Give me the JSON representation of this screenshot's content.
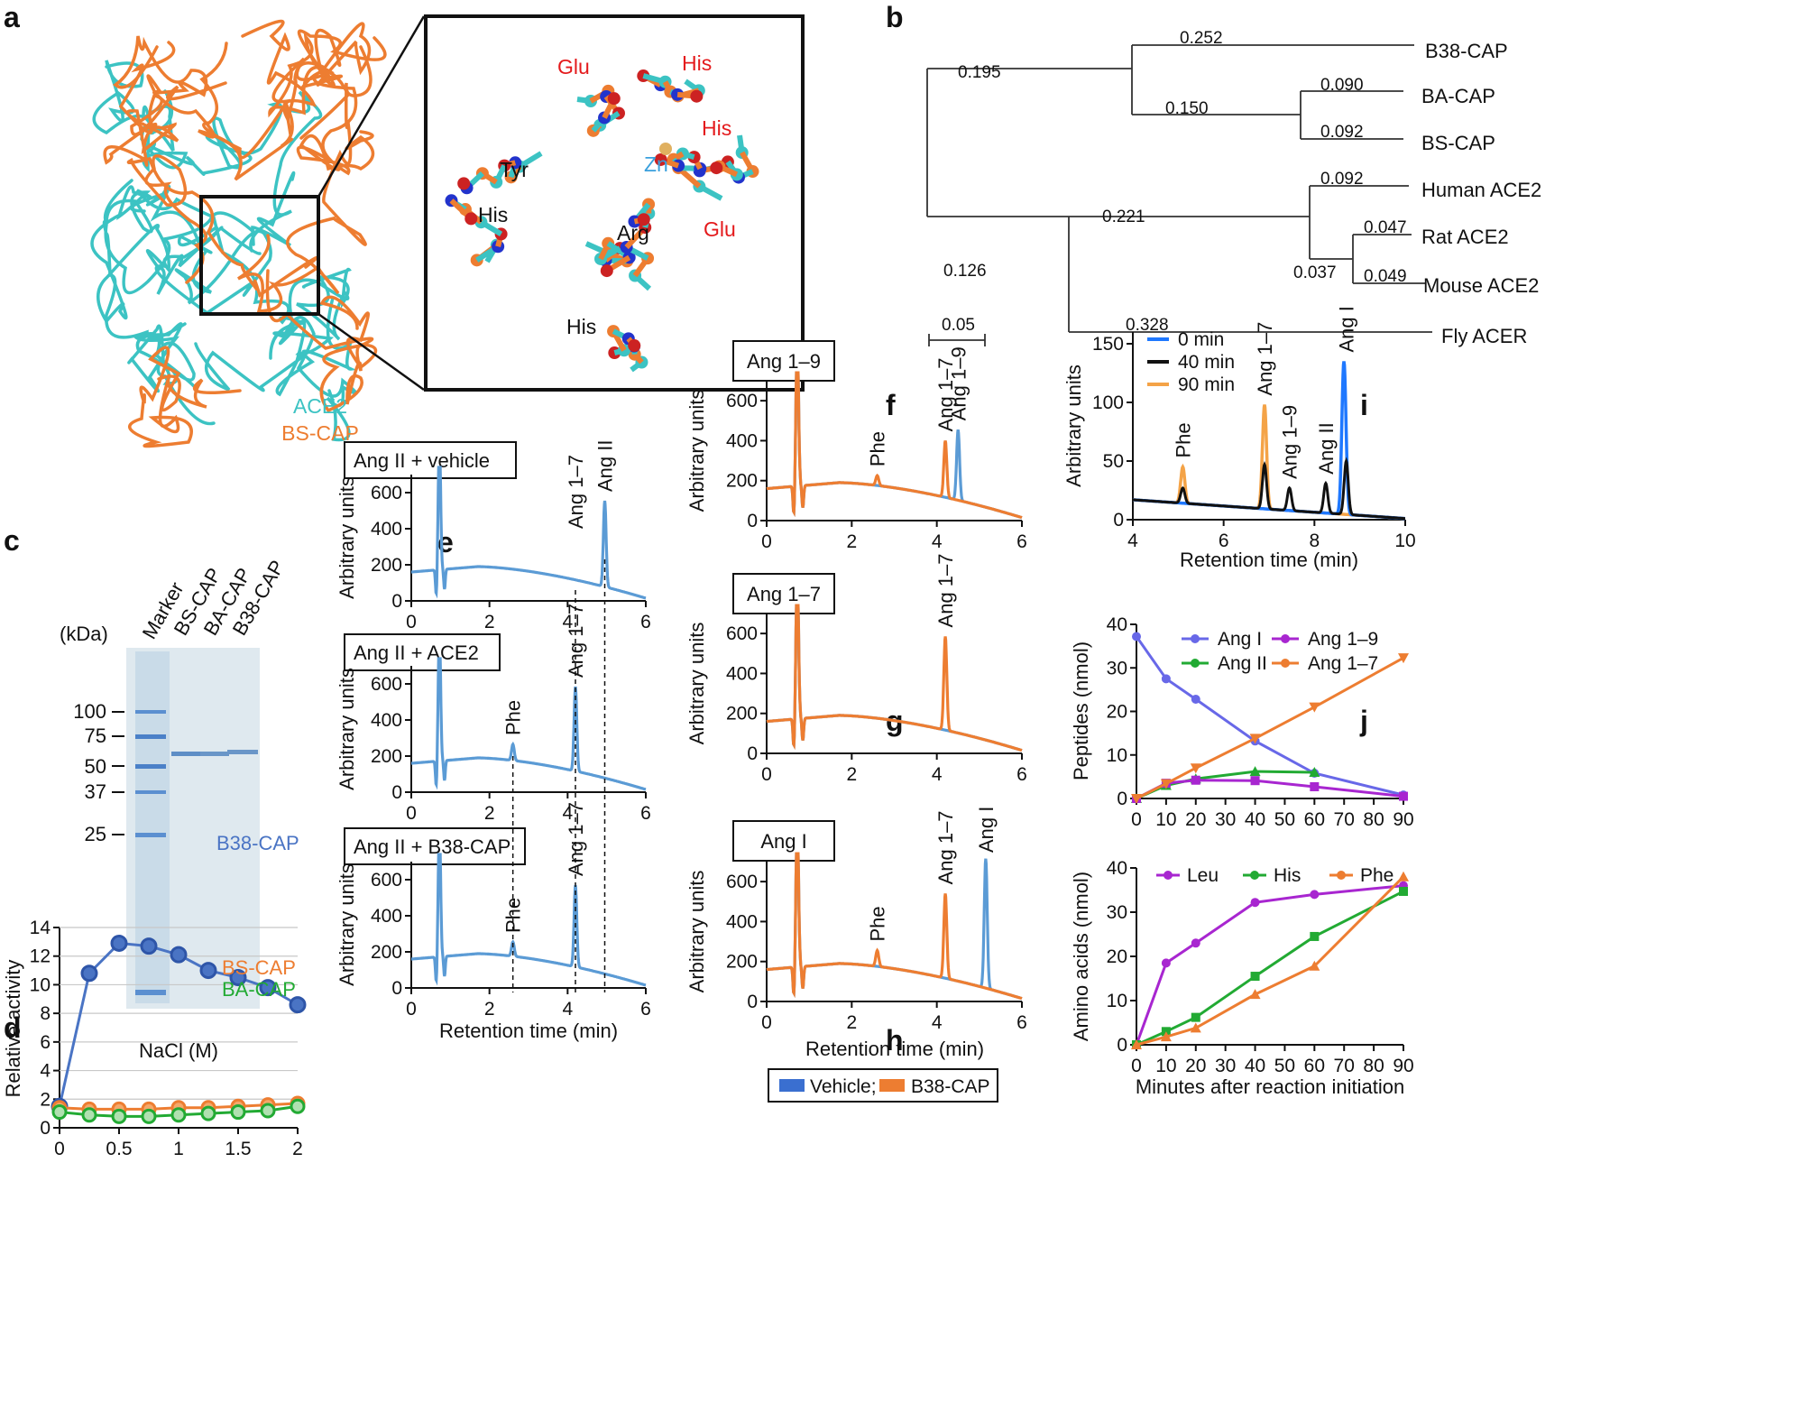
{
  "panel_letters": {
    "a": "a",
    "b": "b",
    "c": "c",
    "d": "d",
    "e": "e",
    "f": "f",
    "g": "g",
    "h": "h",
    "i": "i",
    "j": "j"
  },
  "colors": {
    "blue": "#5b9bd5",
    "orange": "#ed7d31",
    "teal": "#3cc3c3",
    "darkblue": "#2952a3",
    "green": "#22aa33",
    "purple": "#a826d0",
    "red": "#e41a1c",
    "zn": "#3aa0dd",
    "iblue": "#1f78ff",
    "icore": "#f4a347",
    "jblue": "#6868e8"
  },
  "panel_a": {
    "legend": [
      "ACE2",
      "BS-CAP"
    ],
    "residues": [
      {
        "label": "Glu",
        "color": "red"
      },
      {
        "label": "His",
        "color": "red"
      },
      {
        "label": "His",
        "color": "red"
      },
      {
        "label": "Zn",
        "color": "zn"
      },
      {
        "label": "Tyr",
        "color": "black"
      },
      {
        "label": "Glu",
        "color": "red"
      },
      {
        "label": "His",
        "color": "black"
      },
      {
        "label": "Arg",
        "color": "black"
      },
      {
        "label": "His",
        "color": "black"
      }
    ]
  },
  "panel_b": {
    "leaves": [
      "B38-CAP",
      "BA-CAP",
      "BS-CAP",
      "Human ACE2",
      "Rat ACE2",
      "Mouse ACE2",
      "Fly ACER"
    ],
    "branch_lengths": [
      "0.195",
      "0.252",
      "0.150",
      "0.090",
      "0.092",
      "0.126",
      "0.221",
      "0.092",
      "0.037",
      "0.047",
      "0.049",
      "0.328"
    ],
    "scale_label": "0.05"
  },
  "panel_c": {
    "unit": "(kDa)",
    "lanes": [
      "Marker",
      "BS-CAP",
      "BA-CAP",
      "B38-CAP"
    ],
    "marker_kda": [
      "100",
      "75",
      "50",
      "37",
      "25"
    ]
  },
  "chart_data": [
    {
      "id": "d",
      "type": "line",
      "xlabel": "NaCl (M)",
      "ylabel": "Relative activity",
      "xlim": [
        0,
        2
      ],
      "ylim": [
        0,
        14
      ],
      "xticks": [
        "0",
        "0.5",
        "1",
        "1.5",
        "2"
      ],
      "yticks": [
        "0",
        "2",
        "4",
        "6",
        "8",
        "10",
        "12",
        "14"
      ],
      "x": [
        0,
        0.25,
        0.5,
        0.75,
        1.0,
        1.25,
        1.5,
        1.75,
        2.0
      ],
      "series": [
        {
          "name": "B38-CAP",
          "values": [
            1.5,
            10.8,
            12.9,
            12.7,
            12.1,
            11.0,
            10.5,
            9.8,
            8.6
          ]
        },
        {
          "name": "BS-CAP",
          "values": [
            1.4,
            1.3,
            1.3,
            1.3,
            1.4,
            1.4,
            1.5,
            1.6,
            1.7
          ]
        },
        {
          "name": "BA-CAP",
          "values": [
            1.1,
            0.9,
            0.8,
            0.8,
            0.9,
            1.0,
            1.1,
            1.2,
            1.5
          ]
        }
      ]
    },
    {
      "id": "e",
      "type": "line",
      "xlabel": "Retention time (min)",
      "ylabel": "Arbitrary units",
      "xlim": [
        0,
        6
      ],
      "ylim": [
        0,
        700
      ],
      "xticks": [
        "0",
        "2",
        "4",
        "6"
      ],
      "yticks": [
        "0",
        "200",
        "400",
        "600"
      ],
      "subpanels": [
        {
          "title": "Ang II + vehicle",
          "peaks": [
            {
              "label": "Ang 1–7",
              "x": 4.2,
              "h": 0
            },
            {
              "label": "Ang II",
              "x": 4.95,
              "h": 555
            }
          ]
        },
        {
          "title": "Ang II + ACE2",
          "peaks": [
            {
              "label": "Phe",
              "x": 2.6,
              "h": 265
            },
            {
              "label": "Ang 1–7",
              "x": 4.2,
              "h": 585
            }
          ]
        },
        {
          "title": "Ang II + B38-CAP",
          "peaks": [
            {
              "label": "Phe",
              "x": 2.6,
              "h": 255
            },
            {
              "label": "Ang 1–7",
              "x": 4.2,
              "h": 570
            }
          ]
        }
      ]
    },
    {
      "id": "fgh",
      "type": "line",
      "xlabel": "Retention time (min)",
      "ylabel": "Arbitrary units",
      "xlim": [
        0,
        6
      ],
      "ylim": [
        0,
        700
      ],
      "xticks": [
        "0",
        "2",
        "4",
        "6"
      ],
      "yticks": [
        "0",
        "200",
        "400",
        "600"
      ],
      "legend": [
        "Vehicle;",
        "B38-CAP"
      ],
      "subpanels": [
        {
          "title": "Ang 1–9",
          "peaks": [
            {
              "label": "Phe",
              "x": 2.6,
              "h": 225,
              "series": "B38-CAP"
            },
            {
              "label": "Ang 1–7",
              "x": 4.2,
              "h": 400,
              "series": "B38-CAP"
            },
            {
              "label": "Ang 1–9",
              "x": 4.5,
              "h": 455,
              "series": "Vehicle;"
            }
          ]
        },
        {
          "title": "Ang 1–7",
          "peaks": [
            {
              "label": "Ang 1–7",
              "x": 4.2,
              "h": 585,
              "series": "B38-CAP"
            }
          ]
        },
        {
          "title": "Ang I",
          "peaks": [
            {
              "label": "Phe",
              "x": 2.6,
              "h": 255,
              "series": "B38-CAP"
            },
            {
              "label": "Ang 1–7",
              "x": 4.2,
              "h": 540,
              "series": "B38-CAP"
            },
            {
              "label": "Ang I",
              "x": 5.15,
              "h": 715,
              "series": "Vehicle;"
            }
          ]
        }
      ]
    },
    {
      "id": "i",
      "type": "line",
      "xlabel": "Retention time (min)",
      "ylabel": "Arbitrary units",
      "xlim": [
        4,
        10
      ],
      "ylim": [
        0,
        160
      ],
      "xticks": [
        "4",
        "6",
        "8",
        "10"
      ],
      "yticks": [
        "0",
        "50",
        "100",
        "150"
      ],
      "series": [
        {
          "name": "0 min",
          "peaks": [
            {
              "x": 8.65,
              "h": 135
            }
          ]
        },
        {
          "name": "40 min",
          "peaks": [
            {
              "x": 5.1,
              "h": 27
            },
            {
              "x": 6.9,
              "h": 47
            },
            {
              "x": 7.45,
              "h": 27
            },
            {
              "x": 8.25,
              "h": 31
            },
            {
              "x": 8.7,
              "h": 50
            }
          ]
        },
        {
          "name": "90 min",
          "peaks": [
            {
              "x": 5.1,
              "h": 45
            },
            {
              "x": 6.9,
              "h": 98
            }
          ]
        }
      ],
      "peak_labels": [
        {
          "label": "Phe",
          "x": 5.1
        },
        {
          "label": "Ang 1–7",
          "x": 6.9
        },
        {
          "label": "Ang 1–9",
          "x": 7.45
        },
        {
          "label": "Ang II",
          "x": 8.25
        },
        {
          "label": "Ang I",
          "x": 8.7
        }
      ]
    },
    {
      "id": "j_top",
      "type": "line",
      "xlabel": "",
      "ylabel": "Peptides (nmol)",
      "xlim": [
        0,
        90
      ],
      "ylim": [
        0,
        40
      ],
      "xticks": [
        "0",
        "10",
        "20",
        "30",
        "40",
        "50",
        "60",
        "70",
        "80",
        "90"
      ],
      "yticks": [
        "0",
        "10",
        "20",
        "30",
        "40"
      ],
      "series": [
        {
          "name": "Ang I",
          "x": [
            0,
            10,
            20,
            40,
            60,
            90
          ],
          "values": [
            37.2,
            27.5,
            22.8,
            13.2,
            5.8,
            0.8
          ]
        },
        {
          "name": "Ang II",
          "x": [
            0,
            10,
            20,
            40,
            60
          ],
          "values": [
            0,
            3.0,
            4.5,
            6.2,
            6.0
          ]
        },
        {
          "name": "Ang 1–9",
          "x": [
            0,
            10,
            20,
            40,
            60,
            90
          ],
          "values": [
            0,
            3.5,
            4.2,
            4.1,
            2.7,
            0.5
          ]
        },
        {
          "name": "Ang 1–7",
          "x": [
            0,
            10,
            20,
            40,
            60,
            90
          ],
          "values": [
            0,
            3.4,
            7.0,
            13.8,
            21.0,
            32.3
          ]
        }
      ]
    },
    {
      "id": "j_bottom",
      "type": "line",
      "xlabel": "Minutes after reaction initiation",
      "ylabel": "Amino acids (nmol)",
      "xlim": [
        0,
        90
      ],
      "ylim": [
        0,
        40
      ],
      "xticks": [
        "0",
        "10",
        "20",
        "30",
        "40",
        "50",
        "60",
        "70",
        "80",
        "90"
      ],
      "yticks": [
        "0",
        "10",
        "20",
        "30",
        "40"
      ],
      "series": [
        {
          "name": "Leu",
          "x": [
            0,
            10,
            20,
            40,
            60,
            90
          ],
          "values": [
            0,
            18.5,
            23,
            32.2,
            34,
            36
          ]
        },
        {
          "name": "His",
          "x": [
            0,
            10,
            20,
            40,
            60,
            90
          ],
          "values": [
            0,
            3,
            6.2,
            15.5,
            24.5,
            34.7
          ]
        },
        {
          "name": "Phe",
          "x": [
            0,
            10,
            20,
            40,
            60,
            90
          ],
          "values": [
            0,
            1.8,
            3.8,
            11.4,
            17.8,
            38
          ]
        }
      ]
    }
  ]
}
